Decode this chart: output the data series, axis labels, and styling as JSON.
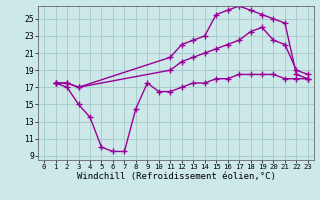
{
  "background_color": "#cce8e8",
  "grid_color": "#aacccc",
  "line_color": "#990099",
  "marker": "+",
  "markersize": 4,
  "linewidth": 1.0,
  "xlabel": "Windchill (Refroidissement éolien,°C)",
  "xlabel_fontsize": 6.5,
  "tick_fontsize": 6,
  "xlim": [
    -0.5,
    23.5
  ],
  "ylim": [
    8.5,
    26.5
  ],
  "yticks": [
    9,
    11,
    13,
    15,
    17,
    19,
    21,
    23,
    25
  ],
  "xticks": [
    0,
    1,
    2,
    3,
    4,
    5,
    6,
    7,
    8,
    9,
    10,
    11,
    12,
    13,
    14,
    15,
    16,
    17,
    18,
    19,
    20,
    21,
    22,
    23
  ],
  "line1_x": [
    1,
    2,
    3,
    11,
    12,
    13,
    14,
    15,
    16,
    17,
    18,
    19,
    20,
    21,
    22,
    23
  ],
  "line1_y": [
    17.5,
    17.5,
    17.0,
    20.5,
    22.0,
    22.5,
    23.0,
    25.5,
    26.0,
    26.5,
    26.0,
    25.5,
    25.0,
    24.5,
    18.5,
    18.0
  ],
  "line2_x": [
    1,
    2,
    3,
    11,
    12,
    13,
    14,
    15,
    16,
    17,
    18,
    19,
    20,
    21,
    22,
    23
  ],
  "line2_y": [
    17.5,
    17.5,
    17.0,
    19.0,
    20.0,
    20.5,
    21.0,
    21.5,
    22.0,
    22.5,
    23.5,
    24.0,
    22.5,
    22.0,
    19.0,
    18.5
  ],
  "line3_x": [
    1,
    2,
    3,
    4,
    5,
    6,
    7,
    8,
    9,
    10,
    11,
    12,
    13,
    14,
    15,
    16,
    17,
    18,
    19,
    20,
    21,
    22,
    23
  ],
  "line3_y": [
    17.5,
    17.0,
    15.0,
    13.5,
    10.0,
    9.5,
    9.5,
    14.5,
    17.5,
    16.5,
    16.5,
    17.0,
    17.5,
    17.5,
    18.0,
    18.0,
    18.5,
    18.5,
    18.5,
    18.5,
    18.0,
    18.0,
    18.0
  ]
}
